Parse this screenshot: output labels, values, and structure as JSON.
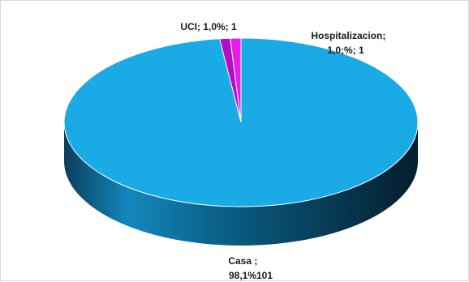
{
  "chart_data": {
    "type": "pie",
    "style": "3d",
    "slices": [
      {
        "category": "Casa",
        "value": 101,
        "percent": "98,1%",
        "color": "#1aabe6",
        "label_lines": [
          "Casa  ;",
          "98,1%101"
        ]
      },
      {
        "category": "Hospitalizacion",
        "value": 1,
        "percent": "1,0;%",
        "color": "#e81de8",
        "label_lines": [
          "Hospitalizacion;",
          "1,0;%; 1"
        ]
      },
      {
        "category": "UCI",
        "value": 1,
        "percent": "1,0%",
        "color": "#b40cc8",
        "label_lines": [
          "UCI; 1,0%; 1"
        ]
      }
    ],
    "legend": "none"
  }
}
